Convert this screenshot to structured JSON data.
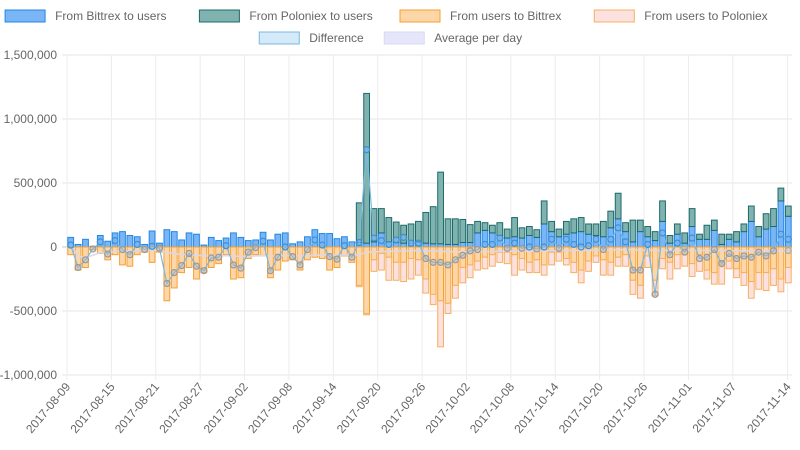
{
  "chart_data": {
    "type": "bar",
    "title": "",
    "xlabel": "",
    "ylabel": "",
    "ylim": [
      -1000000,
      1500000
    ],
    "yticks": [
      "1,500,000",
      "1,000,000",
      "500,000",
      "0",
      "-500,000",
      "-1,000,000"
    ],
    "ytick_values": [
      1500000,
      1000000,
      500000,
      0,
      -500000,
      -1000000
    ],
    "xtick_labels": [
      "2017-08-09",
      "2017-08-15",
      "2017-08-21",
      "2017-08-27",
      "2017-09-02",
      "2017-09-08",
      "2017-09-14",
      "2017-09-20",
      "2017-09-26",
      "2017-10-02",
      "2017-10-08",
      "2017-10-14",
      "2017-10-20",
      "2017-10-26",
      "2017-11-01",
      "2017-11-07",
      "2017-11-14"
    ],
    "grid": true,
    "legend_position": "top",
    "legend": [
      {
        "name": "From Bittrex to users",
        "fill": "#7cb5f5",
        "stroke": "#1e88e5"
      },
      {
        "name": "From Poloniex to users",
        "fill": "#80b3b0",
        "stroke": "#1b6b6b"
      },
      {
        "name": "From users to Bittrex",
        "fill": "#ffd6a8",
        "stroke": "#f5a030"
      },
      {
        "name": "From users to Poloniex",
        "fill": "#fde0e0",
        "stroke": "#f5b060"
      },
      {
        "name": "Difference",
        "fill": "#d4eaf8",
        "stroke": "#7ab8e0"
      },
      {
        "name": "Average per day",
        "fill": "#e6e6fa",
        "stroke": "#d8d8f0"
      }
    ],
    "start_date": "2017-08-09",
    "days": 98,
    "series": [
      {
        "name": "From Bittrex to users",
        "values": [
          75000,
          20000,
          60000,
          5000,
          90000,
          45000,
          110000,
          120000,
          90000,
          80000,
          20000,
          125000,
          30000,
          135000,
          120000,
          55000,
          110000,
          100000,
          15000,
          75000,
          50000,
          70000,
          110000,
          75000,
          50000,
          55000,
          115000,
          55000,
          100000,
          110000,
          25000,
          40000,
          80000,
          135000,
          105000,
          105000,
          65000,
          80000,
          40000,
          35000,
          30000,
          40000,
          110000,
          40000,
          35000,
          30000,
          30000,
          40000,
          30000,
          25000,
          25000,
          20000,
          20000,
          35000,
          35000,
          110000,
          130000,
          110000,
          90000,
          70000,
          80000,
          70000,
          90000,
          75000,
          180000,
          120000,
          80000,
          100000,
          110000,
          120000,
          100000,
          90000,
          80000,
          150000,
          220000,
          120000,
          40000,
          120000,
          80000,
          50000,
          200000,
          30000,
          100000,
          30000,
          160000,
          60000,
          60000,
          130000,
          20000,
          60000,
          40000,
          120000,
          200000,
          80000,
          140000,
          160000,
          360000,
          240000
        ]
      },
      {
        "name": "From Poloniex to users",
        "values": [
          0,
          0,
          0,
          0,
          0,
          0,
          0,
          0,
          0,
          0,
          0,
          0,
          0,
          0,
          0,
          0,
          0,
          0,
          0,
          0,
          0,
          0,
          0,
          0,
          0,
          0,
          0,
          0,
          0,
          0,
          0,
          0,
          0,
          0,
          0,
          0,
          0,
          0,
          0,
          310000,
          1170000,
          260000,
          190000,
          190000,
          160000,
          140000,
          150000,
          160000,
          240000,
          290000,
          560000,
          200000,
          200000,
          180000,
          140000,
          90000,
          60000,
          60000,
          100000,
          70000,
          150000,
          80000,
          70000,
          60000,
          180000,
          80000,
          60000,
          100000,
          110000,
          110000,
          80000,
          90000,
          120000,
          130000,
          200000,
          70000,
          170000,
          90000,
          80000,
          70000,
          160000,
          60000,
          80000,
          80000,
          140000,
          40000,
          110000,
          80000,
          80000,
          40000,
          80000,
          60000,
          120000,
          80000,
          120000,
          140000,
          100000,
          80000
        ]
      },
      {
        "name": "From users to Bittrex",
        "values": [
          -60000,
          -180000,
          -160000,
          -20000,
          -50000,
          -100000,
          -60000,
          -140000,
          -150000,
          -60000,
          -40000,
          -120000,
          -40000,
          -420000,
          -320000,
          -200000,
          -160000,
          -250000,
          -200000,
          -160000,
          -130000,
          -60000,
          -250000,
          -240000,
          -90000,
          -60000,
          -70000,
          -240000,
          -180000,
          -110000,
          -100000,
          -180000,
          -100000,
          -80000,
          -90000,
          -180000,
          -160000,
          -70000,
          -120000,
          -300000,
          -520000,
          -100000,
          -50000,
          -80000,
          -120000,
          -120000,
          -90000,
          -100000,
          -250000,
          -370000,
          -420000,
          -440000,
          -300000,
          -160000,
          -140000,
          -110000,
          -80000,
          -60000,
          -40000,
          -40000,
          -60000,
          -90000,
          -120000,
          -100000,
          -140000,
          -40000,
          -40000,
          -90000,
          -120000,
          -180000,
          -110000,
          -70000,
          -100000,
          -120000,
          -80000,
          -60000,
          -260000,
          -300000,
          -70000,
          -260000,
          -90000,
          -120000,
          -60000,
          -60000,
          -130000,
          -60000,
          -180000,
          -200000,
          -140000,
          -110000,
          -170000,
          -200000,
          -270000,
          -200000,
          -200000,
          -170000,
          -250000,
          -160000
        ]
      },
      {
        "name": "From users to Poloniex",
        "values": [
          0,
          0,
          0,
          0,
          0,
          0,
          0,
          0,
          0,
          0,
          0,
          0,
          0,
          0,
          0,
          0,
          0,
          0,
          0,
          0,
          0,
          0,
          0,
          0,
          0,
          0,
          0,
          0,
          0,
          0,
          0,
          0,
          0,
          0,
          0,
          0,
          0,
          0,
          0,
          -10000,
          -10000,
          -90000,
          -130000,
          -180000,
          -140000,
          -150000,
          -160000,
          -120000,
          -110000,
          -80000,
          -360000,
          -80000,
          -100000,
          -120000,
          -100000,
          -70000,
          -90000,
          -90000,
          -80000,
          -90000,
          -160000,
          -90000,
          -80000,
          -100000,
          -80000,
          -100000,
          -70000,
          -50000,
          -80000,
          -100000,
          -80000,
          -50000,
          -120000,
          -100000,
          -70000,
          -90000,
          -110000,
          -100000,
          -90000,
          -120000,
          -80000,
          -130000,
          -110000,
          -90000,
          -100000,
          -130000,
          -70000,
          -90000,
          -150000,
          -60000,
          -70000,
          -100000,
          -130000,
          -130000,
          -140000,
          -130000,
          -100000,
          -120000
        ]
      },
      {
        "name": "Difference",
        "values": [
          15000,
          -160000,
          -100000,
          -15000,
          40000,
          -55000,
          50000,
          -20000,
          -60000,
          20000,
          -20000,
          5000,
          -10000,
          -285000,
          -200000,
          -145000,
          -50000,
          -150000,
          -185000,
          -85000,
          -80000,
          10000,
          -140000,
          -165000,
          -40000,
          -5000,
          45000,
          -185000,
          -80000,
          0,
          -75000,
          -140000,
          -20000,
          55000,
          15000,
          -75000,
          -95000,
          10000,
          -80000,
          35000,
          760000,
          70000,
          50000,
          20000,
          55000,
          75000,
          30000,
          30000,
          -90000,
          -120000,
          -120000,
          -140000,
          -100000,
          -65000,
          -30000,
          -20000,
          20000,
          20000,
          70000,
          -10000,
          30000,
          -10000,
          0,
          -15000,
          0,
          60000,
          -10000,
          60000,
          20000,
          0,
          10000,
          60000,
          -20000,
          60000,
          150000,
          40000,
          -180000,
          -180000,
          20000,
          -370000,
          110000,
          -60000,
          30000,
          -40000,
          70000,
          -90000,
          -80000,
          -20000,
          -130000,
          -50000,
          -90000,
          -70000,
          -80000,
          -40000,
          -70000,
          -30000,
          100000,
          60000
        ]
      },
      {
        "name": "Average per day",
        "values": [
          15000,
          -72500,
          -81667,
          -65000,
          -44000,
          -45833,
          -32143,
          -30625,
          -33889,
          -28500,
          -27727,
          -25000,
          -23846,
          -42500,
          -53000,
          -58750,
          -58235,
          -63333,
          -69737,
          -70500,
          -71000,
          -67273,
          -70435,
          -74375,
          -73000,
          -70385,
          -66111,
          -70357,
          -70690,
          -68333,
          -68548,
          -70781,
          -69242,
          -65588,
          -63286,
          -63611,
          -64459,
          -62500,
          -62949,
          -60500,
          -40488,
          -37857,
          -35814,
          -34545,
          -32556,
          -30217,
          -28936,
          -27708,
          -30204,
          -32000,
          -33725,
          -35769,
          -37000,
          -37500,
          -37364,
          -37036,
          -36053,
          -35086,
          -33305,
          -32917,
          -31885,
          -31532,
          -31032,
          -30781,
          -30308,
          -28939,
          -28657,
          -27353,
          -26667,
          -26286,
          -25775,
          -24583,
          -24521,
          -23378,
          -21067,
          -20263,
          -22338,
          -24359,
          -23797,
          -28125,
          -26420,
          -26829,
          -26145,
          -26310,
          -25176,
          -25930,
          -26552,
          -26477,
          -27640,
          -27889,
          -28571,
          -29022,
          -29624,
          -29734,
          -30158,
          -30156,
          -28814,
          -27908
        ]
      }
    ]
  }
}
